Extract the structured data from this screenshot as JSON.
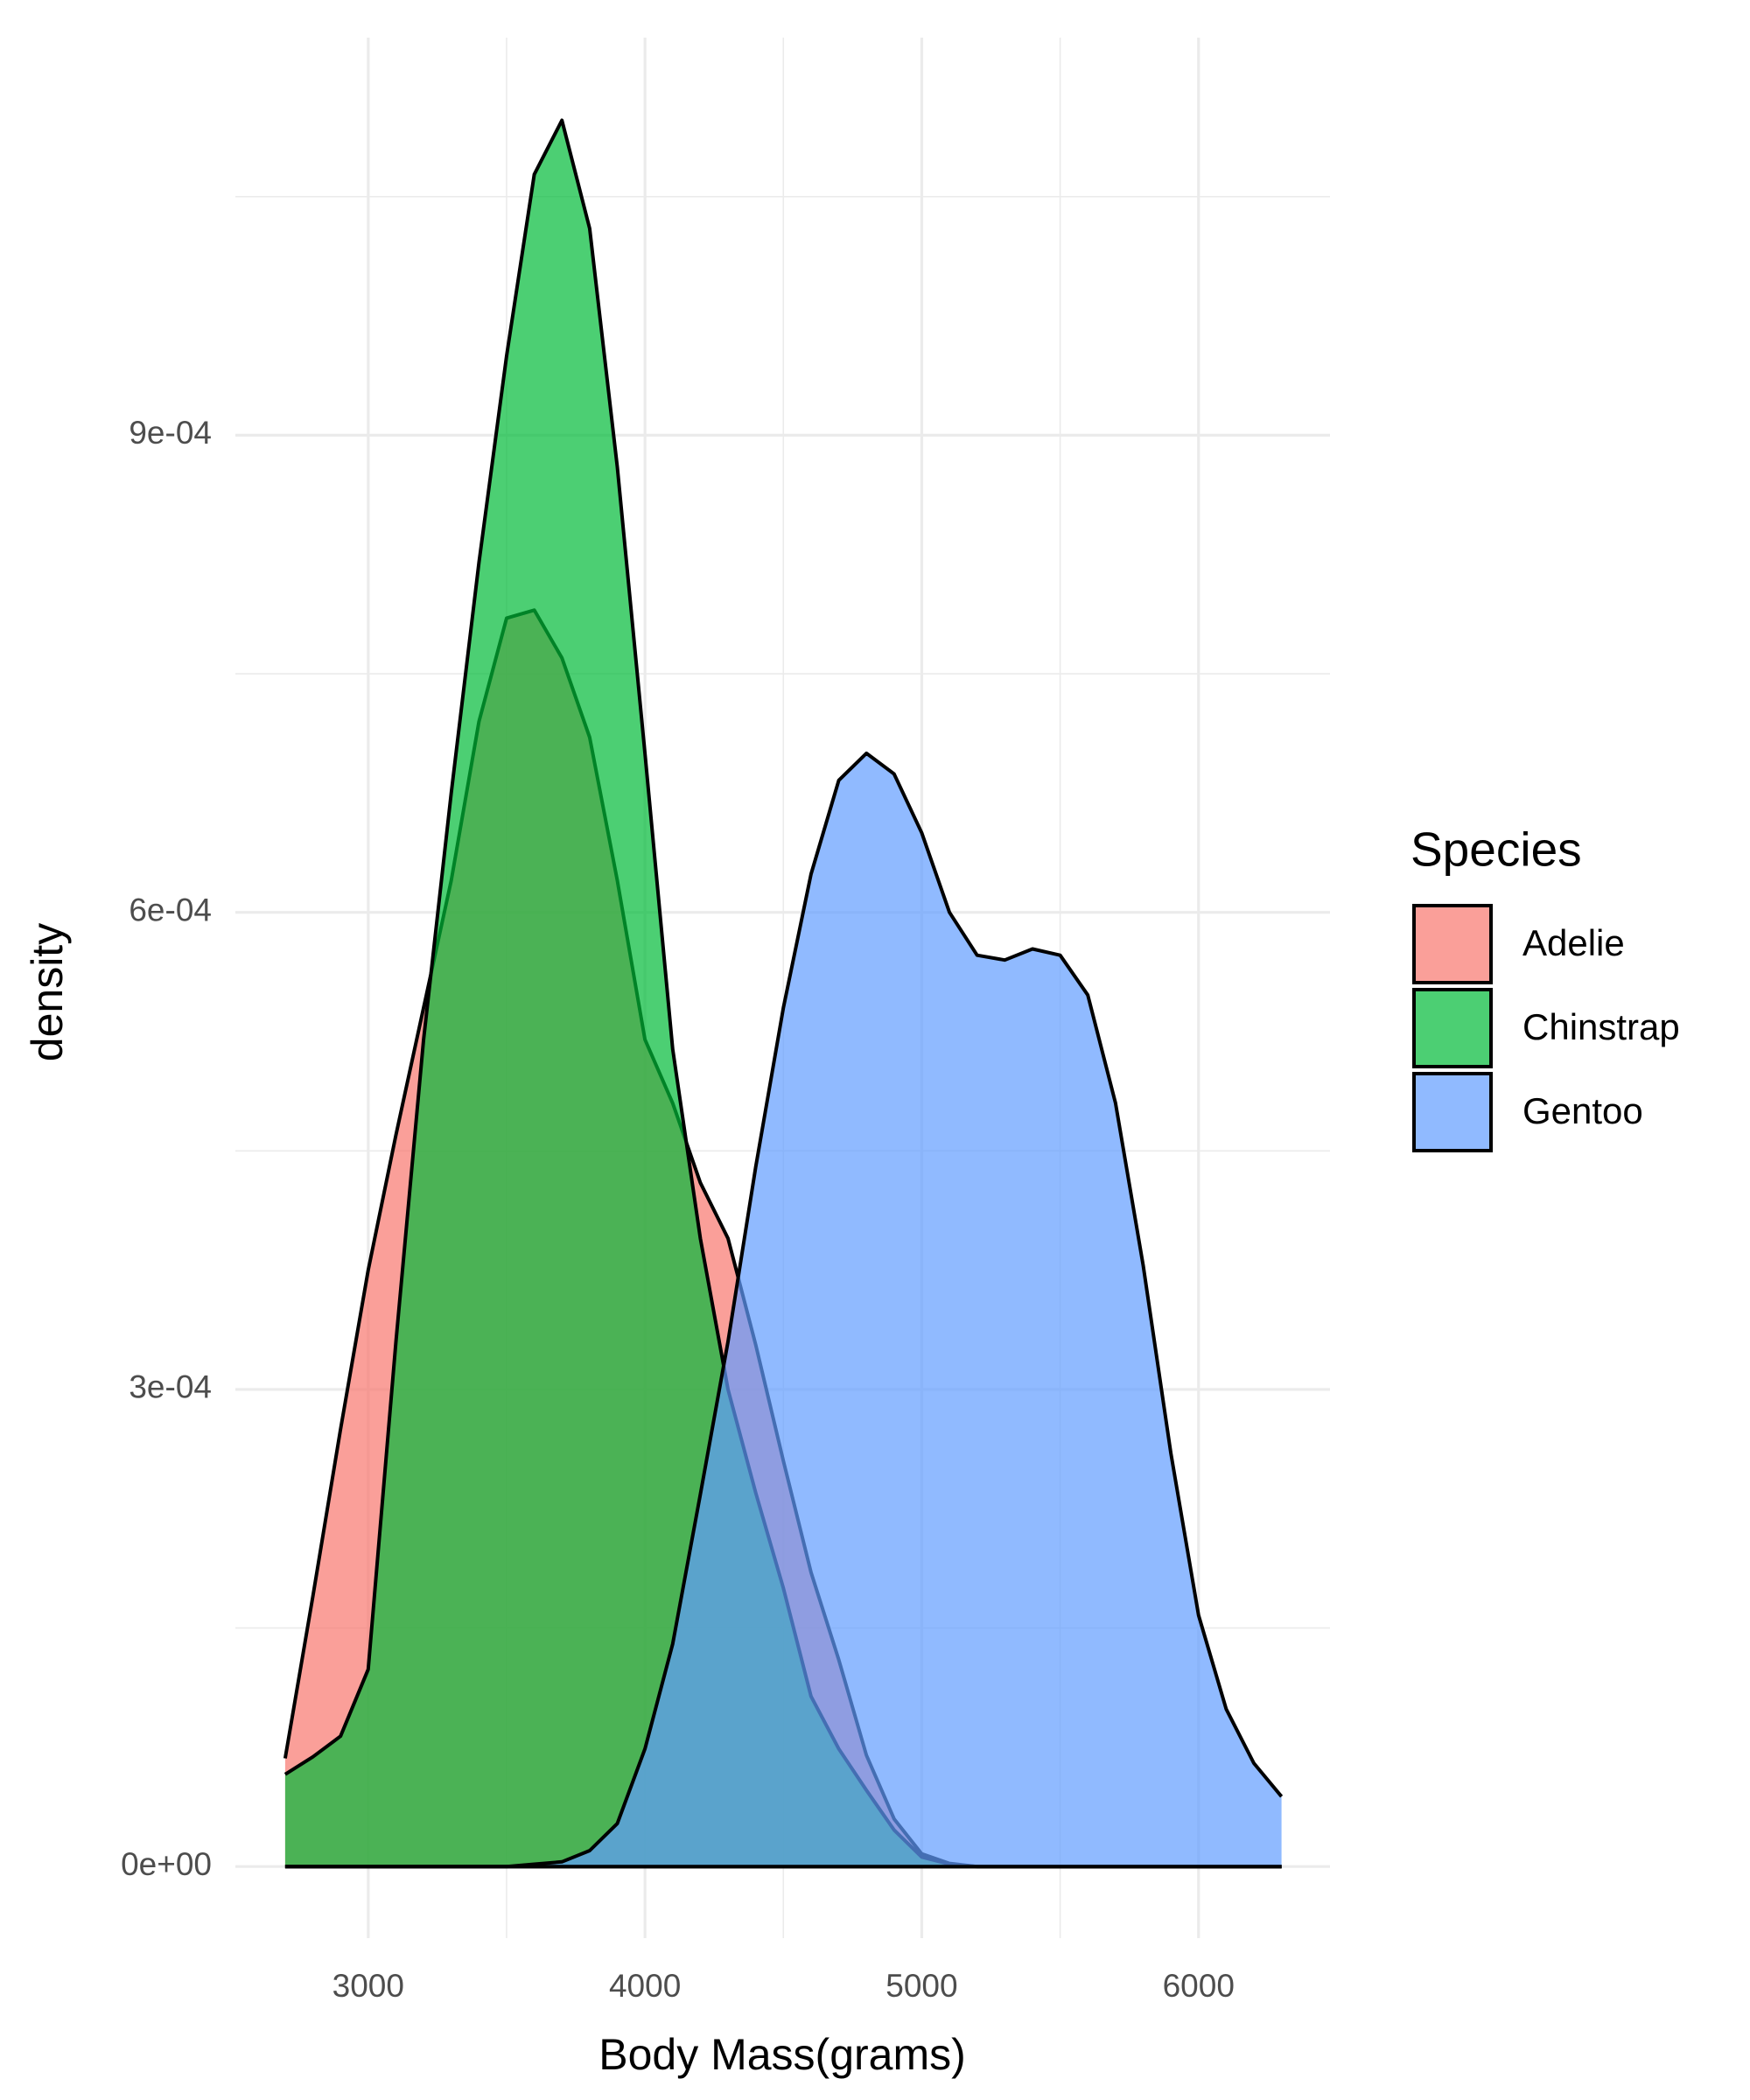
{
  "chart_data": {
    "type": "density",
    "x_label": "Body Mass(grams)",
    "y_label": "density",
    "legend_title": "Species",
    "legend_position": "right",
    "grid": true,
    "alpha": 0.7,
    "outline_color": "#000000",
    "x": [
      2700,
      2800,
      2900,
      3000,
      3100,
      3200,
      3300,
      3400,
      3500,
      3600,
      3700,
      3800,
      3900,
      4000,
      4100,
      4200,
      4300,
      4400,
      4500,
      4600,
      4700,
      4800,
      4900,
      5000,
      5100,
      5200,
      5300,
      5400,
      5500,
      5600,
      5700,
      5800,
      5900,
      6000,
      6100,
      6200,
      6300
    ],
    "series": [
      {
        "name": "Adelie",
        "color": "#F8766D",
        "values": [
          6.8e-05,
          0.00017,
          0.000275,
          0.000375,
          0.00046,
          0.00054,
          0.00062,
          0.00072,
          0.000785,
          0.00079,
          0.00076,
          0.00071,
          0.00062,
          0.00052,
          0.00048,
          0.00043,
          0.000395,
          0.000328,
          0.000255,
          0.000185,
          0.00013,
          7e-05,
          3e-05,
          8e-06,
          2e-06,
          0,
          0,
          0,
          0,
          0,
          0,
          0,
          0,
          0,
          0,
          0,
          0
        ]
      },
      {
        "name": "Chinstrap",
        "color": "#00BA38",
        "values": [
          5.8e-05,
          6.9e-05,
          8.2e-05,
          0.000124,
          0.00033,
          0.00052,
          0.000675,
          0.00082,
          0.00095,
          0.001064,
          0.001098,
          0.00103,
          0.00088,
          0.0007,
          0.000514,
          0.000395,
          0.0003,
          0.000235,
          0.000175,
          0.000107,
          7.4e-05,
          4.8e-05,
          2.3e-05,
          6e-06,
          1.5e-06,
          0,
          0,
          0,
          0,
          0,
          0,
          0,
          0,
          0,
          0,
          0,
          0
        ]
      },
      {
        "name": "Gentoo",
        "color": "#619CFF",
        "values": [
          0,
          0,
          0,
          0,
          0,
          0,
          0,
          0,
          0,
          1.5e-06,
          3e-06,
          1e-05,
          2.7e-05,
          7.4e-05,
          0.00014,
          0.000234,
          0.00033,
          0.00044,
          0.00054,
          0.000624,
          0.000683,
          0.0007,
          0.000687,
          0.00065,
          0.0006,
          0.000573,
          0.00057,
          0.000577,
          0.000573,
          0.000548,
          0.00048,
          0.000378,
          0.00026,
          0.000158,
          9.9e-05,
          6.5e-05,
          4.4e-05
        ]
      }
    ],
    "xlim": [
      2520,
      6475
    ],
    "ylim": [
      -4.5e-05,
      0.00115
    ],
    "xticks": [
      3000,
      4000,
      5000,
      6000
    ],
    "yticks": [
      {
        "value": 0,
        "label": "0e+00"
      },
      {
        "value": 0.0003,
        "label": "3e-04"
      },
      {
        "value": 0.0006,
        "label": "6e-04"
      },
      {
        "value": 0.0009,
        "label": "9e-04"
      }
    ]
  }
}
